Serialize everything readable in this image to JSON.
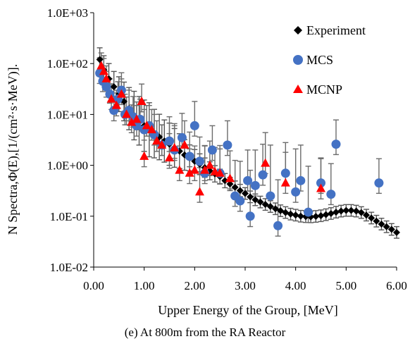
{
  "caption": "(e) At 800m from the RA Reactor",
  "chart_data": {
    "type": "scatter",
    "xlabel": "Upper Energy of  the Group, [MeV]",
    "ylabel": "N Spectra,Φ(E),[1/(cm²·s·MeV)].",
    "xlim": [
      0,
      6
    ],
    "ylim": [
      0.01,
      1000
    ],
    "yscale": "log",
    "x_ticks": [
      "0.00",
      "1.00",
      "2.00",
      "3.00",
      "4.00",
      "5.00",
      "6.00"
    ],
    "y_ticks": [
      "1.0E-02",
      "1.0E-01",
      "1.0E+00",
      "1.0E+01",
      "1.0E+02",
      "1.0E+03"
    ],
    "grid": false,
    "legend_position": "top-right",
    "series": [
      {
        "name": "Experiment",
        "marker": "diamond",
        "color": "#000000",
        "error_color": "#555555",
        "x": [
          0.12,
          0.2,
          0.3,
          0.4,
          0.5,
          0.6,
          0.7,
          0.8,
          0.9,
          1.0,
          1.1,
          1.2,
          1.3,
          1.4,
          1.5,
          1.6,
          1.7,
          1.8,
          1.9,
          2.0,
          2.1,
          2.2,
          2.3,
          2.4,
          2.5,
          2.6,
          2.7,
          2.8,
          2.9,
          3.0,
          3.1,
          3.2,
          3.3,
          3.4,
          3.5,
          3.6,
          3.7,
          3.8,
          3.9,
          4.0,
          4.1,
          4.2,
          4.3,
          4.4,
          4.5,
          4.6,
          4.7,
          4.8,
          4.9,
          5.0,
          5.1,
          5.2,
          5.3,
          5.4,
          5.5,
          5.6,
          5.7,
          5.8,
          5.9,
          6.0
        ],
        "y": [
          120,
          75,
          50,
          35,
          25,
          18,
          13,
          9.5,
          7.5,
          6,
          5,
          4.2,
          3.6,
          3,
          2.6,
          2.2,
          1.9,
          1.6,
          1.4,
          1.2,
          1.05,
          0.9,
          0.78,
          0.68,
          0.6,
          0.5,
          0.43,
          0.37,
          0.32,
          0.28,
          0.24,
          0.21,
          0.19,
          0.17,
          0.155,
          0.14,
          0.128,
          0.118,
          0.11,
          0.105,
          0.1,
          0.098,
          0.097,
          0.099,
          0.102,
          0.107,
          0.113,
          0.12,
          0.126,
          0.13,
          0.13,
          0.126,
          0.118,
          0.105,
          0.092,
          0.08,
          0.07,
          0.062,
          0.055,
          0.048
        ],
        "err_factor": [
          1.7,
          1.9,
          2.0,
          2.0,
          2.2,
          2.4,
          2.6,
          3.0,
          3.0,
          3.2,
          3.4,
          3.0,
          2.8,
          2.6,
          2.6,
          2.4,
          2.2,
          2.0,
          1.8,
          1.7,
          1.6,
          1.55,
          1.5,
          1.45,
          1.4,
          1.38,
          1.35,
          1.33,
          1.32,
          1.3,
          1.3,
          1.3,
          1.3,
          1.3,
          1.3,
          1.3,
          1.3,
          1.3,
          1.3,
          1.3,
          1.3,
          1.3,
          1.3,
          1.3,
          1.3,
          1.3,
          1.3,
          1.3,
          1.3,
          1.3,
          1.3,
          1.3,
          1.3,
          1.3,
          1.3,
          1.3,
          1.3,
          1.3,
          1.3,
          1.3
        ]
      },
      {
        "name": "MCS",
        "marker": "circle",
        "color": "#4472C4",
        "x": [
          0.12,
          0.18,
          0.25,
          0.32,
          0.4,
          0.48,
          0.55,
          0.62,
          0.7,
          0.78,
          0.85,
          0.92,
          1.0,
          1.1,
          1.2,
          1.35,
          1.5,
          1.6,
          1.75,
          1.9,
          2.0,
          2.1,
          2.2,
          2.35,
          2.5,
          2.65,
          2.8,
          2.9,
          3.05,
          3.1,
          3.2,
          3.35,
          3.5,
          3.65,
          3.8,
          4.0,
          4.1,
          4.25,
          4.5,
          4.7,
          4.8,
          5.65
        ],
        "y": [
          65,
          45,
          35,
          25,
          12,
          20,
          30,
          10,
          12,
          9,
          6,
          8,
          5,
          6,
          4,
          2.5,
          3,
          2,
          3.5,
          1.5,
          6,
          1.2,
          0.7,
          2,
          0.7,
          2.5,
          0.25,
          0.2,
          0.5,
          0.1,
          0.4,
          0.65,
          0.25,
          0.065,
          0.7,
          0.3,
          0.5,
          0.12,
          0.45,
          0.27,
          2.6,
          0.45
        ],
        "err_low_factor": [
          1.6,
          1.6,
          1.6,
          1.5,
          1.6,
          1.5,
          1.5,
          1.6,
          1.6,
          1.6,
          1.6,
          1.6,
          1.6,
          1.6,
          1.6,
          1.6,
          1.6,
          1.6,
          1.6,
          1.6,
          1.6,
          1.6,
          1.6,
          1.6,
          1.6,
          1.6,
          1.6,
          1.6,
          1.6,
          1.6,
          1.6,
          1.6,
          1.6,
          1.6,
          1.6,
          1.6,
          1.6,
          1.6,
          1.6,
          1.6,
          1.6,
          1.6
        ],
        "err_high_factor": [
          2.0,
          2.0,
          2.0,
          2.0,
          2.2,
          2.2,
          2.2,
          2.5,
          2.5,
          2.5,
          2.5,
          2.5,
          2.5,
          2.5,
          2.5,
          2.5,
          3.0,
          3.0,
          3.0,
          3.0,
          3.0,
          3.0,
          3.5,
          3.0,
          3.5,
          3.0,
          5.0,
          6.0,
          4.0,
          8.0,
          5.0,
          4.0,
          10.0,
          8.0,
          4.0,
          7.0,
          5.0,
          8.0,
          3.0,
          4.0,
          3.0,
          3.0
        ]
      },
      {
        "name": "MCNP",
        "marker": "triangle",
        "color": "#FF0000",
        "x": [
          0.15,
          0.2,
          0.25,
          0.35,
          0.45,
          0.55,
          0.65,
          0.75,
          0.85,
          0.95,
          1.0,
          1.05,
          1.15,
          1.25,
          1.35,
          1.5,
          1.6,
          1.7,
          1.8,
          1.9,
          2.0,
          2.1,
          2.2,
          2.3,
          2.4,
          2.5,
          2.7,
          3.4,
          3.8,
          4.5
        ],
        "y": [
          90,
          70,
          50,
          20,
          15,
          25,
          10,
          7,
          8,
          18,
          1.5,
          6,
          5,
          3,
          2.5,
          1.4,
          2.2,
          0.8,
          2.5,
          0.7,
          0.8,
          0.3,
          0.8,
          1,
          0.75,
          0.7,
          0.55,
          1.1,
          0.45,
          0.35
        ],
        "err_low_factor": [
          1.6,
          1.6,
          1.6,
          1.6,
          1.6,
          1.6,
          1.6,
          1.6,
          1.6,
          1.6,
          1.6,
          1.6,
          1.6,
          1.6,
          1.6,
          1.6,
          1.6,
          1.6,
          1.6,
          1.6,
          1.6,
          1.6,
          1.6,
          1.6,
          1.6,
          1.6,
          1.6,
          1.6,
          1.6,
          1.6
        ],
        "err_high_factor": [
          1.8,
          1.8,
          1.8,
          2.0,
          2.0,
          2.0,
          2.2,
          2.2,
          2.2,
          2.2,
          3.0,
          2.5,
          2.5,
          2.5,
          2.5,
          3.0,
          3.0,
          3.0,
          3.0,
          3.0,
          3.0,
          3.0,
          3.0,
          3.0,
          3.0,
          3.0,
          3.5,
          4.0,
          4.0,
          4.0
        ]
      }
    ]
  }
}
